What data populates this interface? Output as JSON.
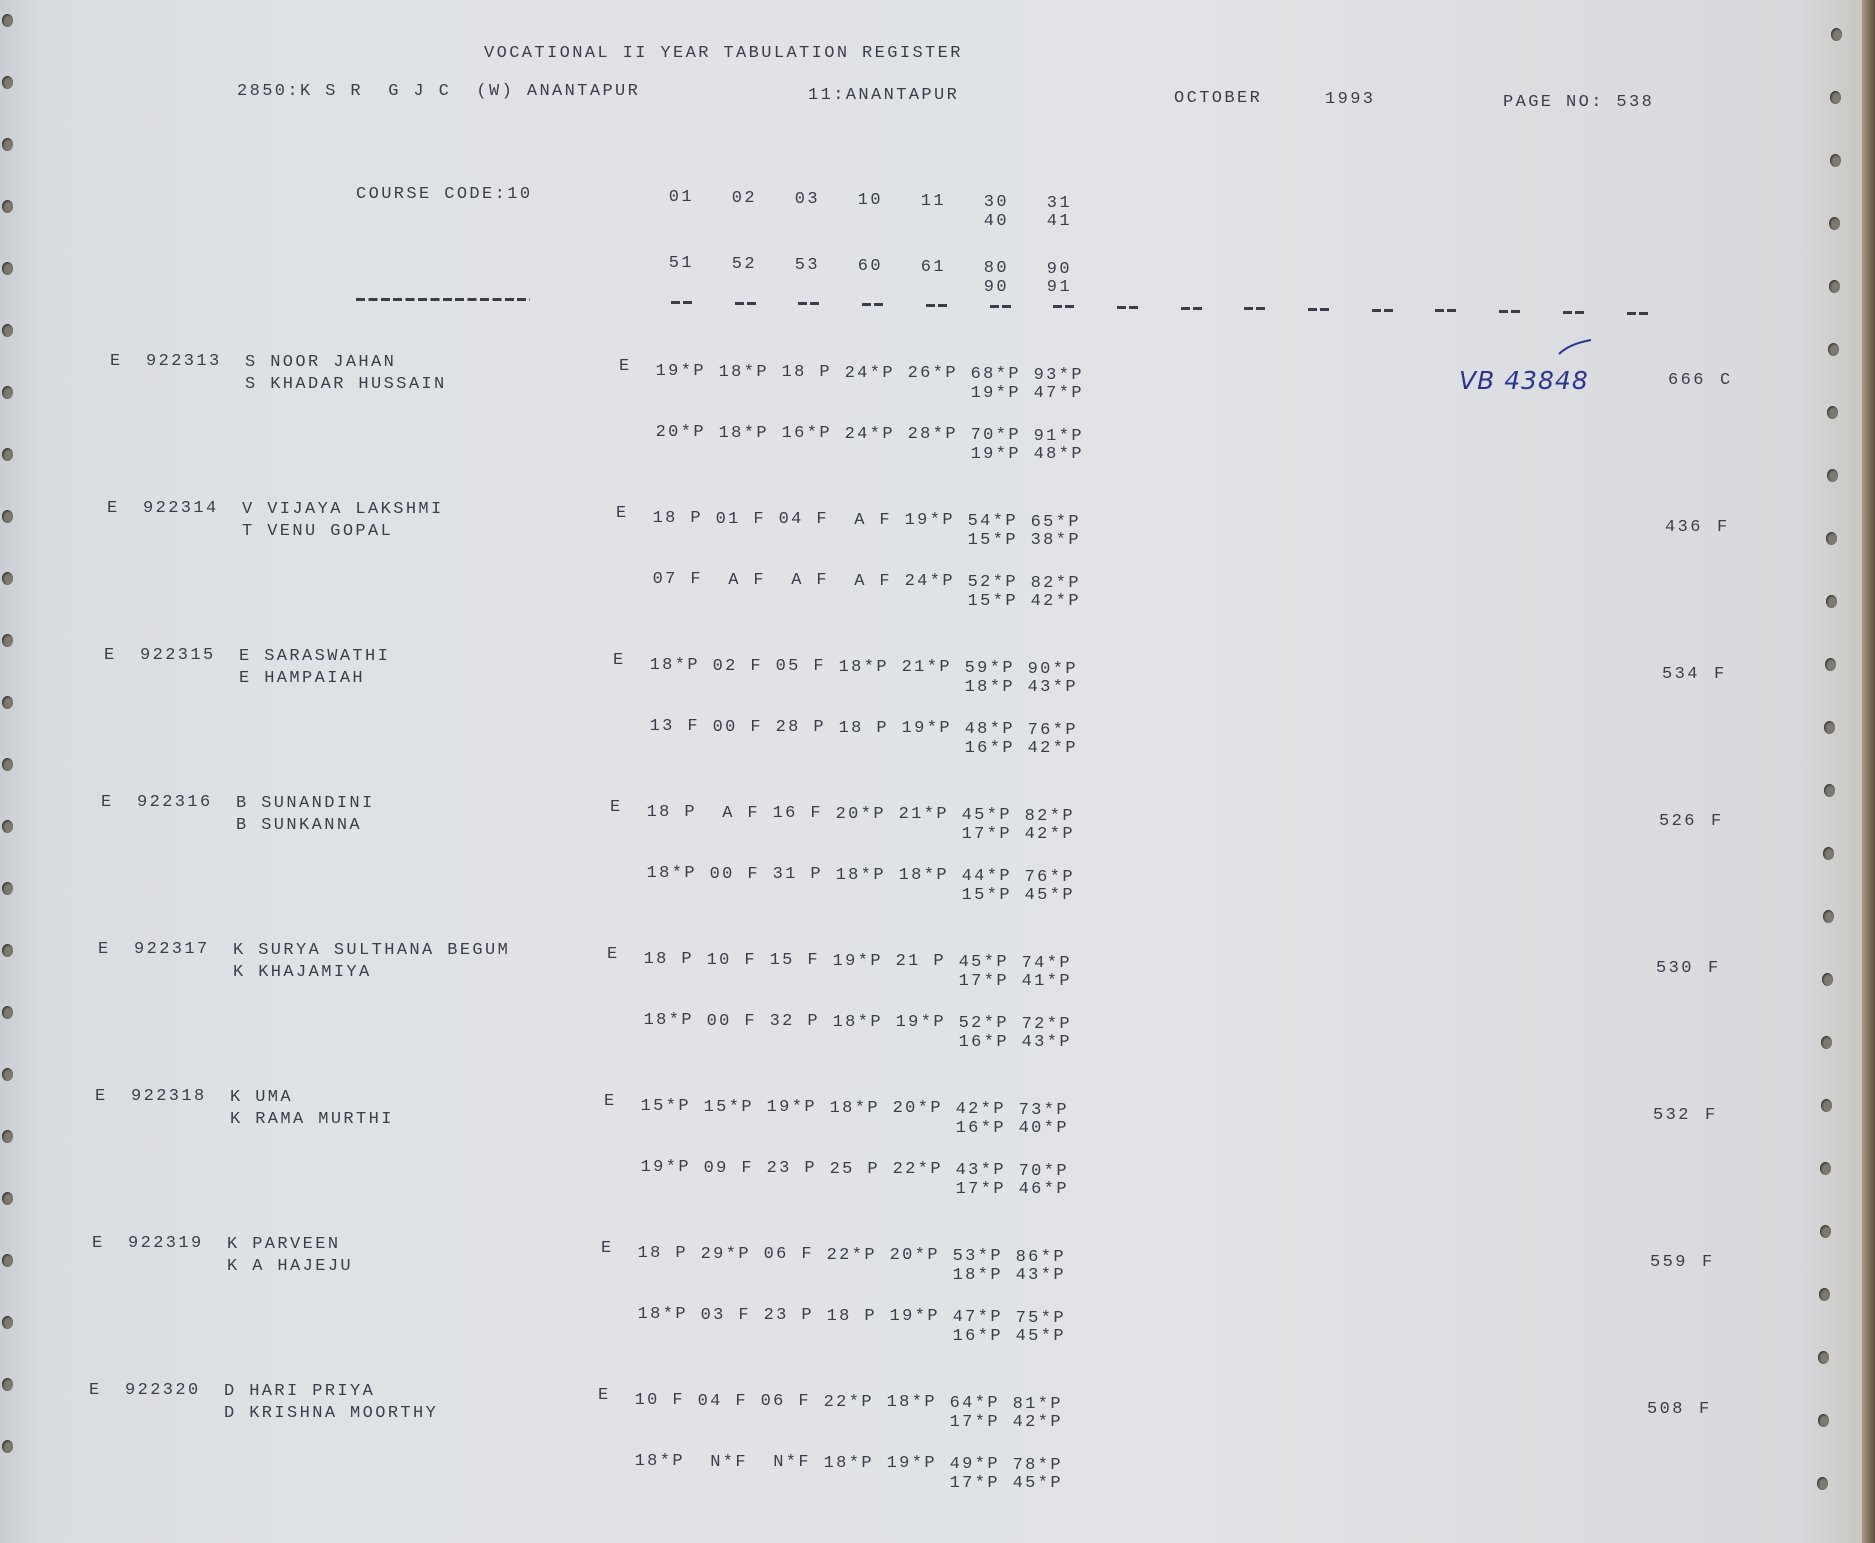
{
  "header": {
    "title": "VOCATIONAL II YEAR TABULATION REGISTER",
    "college": "2850:K S R  G J C  (W) ANANTAPUR",
    "district": "11:ANANTAPUR",
    "month": "OCTOBER",
    "year": "1993",
    "page_no": "PAGE NO: 538"
  },
  "course": {
    "label": "COURSE CODE:10",
    "codes_row1": [
      "01",
      "02",
      "03",
      "10",
      "11",
      "30",
      "31"
    ],
    "codes_row1_sub": [
      "40",
      "41"
    ],
    "codes_row2": [
      "51",
      "52",
      "53",
      "60",
      "61",
      "80",
      "90"
    ],
    "codes_row2_sub": [
      "90",
      "91"
    ]
  },
  "handwritten_note": "VB 43848",
  "colors": {
    "ink": "#3b3e4a",
    "pen": "#2b3590",
    "paper": "#e0e2e5"
  },
  "records": [
    {
      "tag": "E",
      "roll": "922313",
      "name": "S NOOR JAHAN",
      "parent": "S KHADAR HUSSAIN",
      "exam": "E",
      "line1": [
        "19*P",
        "18*P",
        "18 P",
        "24*P",
        "26*P",
        "68*P",
        "93*P"
      ],
      "line1_sub": [
        "19*P",
        "47*P"
      ],
      "line2": [
        "20*P",
        "18*P",
        "16*P",
        "24*P",
        "28*P",
        "70*P",
        "91*P"
      ],
      "line2_sub": [
        "19*P",
        "48*P"
      ],
      "total": "666",
      "result": "C"
    },
    {
      "tag": "E",
      "roll": "922314",
      "name": "V VIJAYA LAKSHMI",
      "parent": "T VENU GOPAL",
      "exam": "E",
      "line1": [
        "18 P",
        "01 F",
        "04 F",
        "A F",
        "19*P",
        "54*P",
        "65*P"
      ],
      "line1_sub": [
        "15*P",
        "38*P"
      ],
      "line2": [
        "07 F",
        "A F",
        "A F",
        "A F",
        "24*P",
        "52*P",
        "82*P"
      ],
      "line2_sub": [
        "15*P",
        "42*P"
      ],
      "total": "436",
      "result": "F"
    },
    {
      "tag": "E",
      "roll": "922315",
      "name": "E SARASWATHI",
      "parent": "E HAMPAIAH",
      "exam": "E",
      "line1": [
        "18*P",
        "02 F",
        "05 F",
        "18*P",
        "21*P",
        "59*P",
        "90*P"
      ],
      "line1_sub": [
        "18*P",
        "43*P"
      ],
      "line2": [
        "13 F",
        "00 F",
        "28 P",
        "18 P",
        "19*P",
        "48*P",
        "76*P"
      ],
      "line2_sub": [
        "16*P",
        "42*P"
      ],
      "total": "534",
      "result": "F"
    },
    {
      "tag": "E",
      "roll": "922316",
      "name": "B SUNANDINI",
      "parent": "B SUNKANNA",
      "exam": "E",
      "line1": [
        "18 P",
        "A F",
        "16 F",
        "20*P",
        "21*P",
        "45*P",
        "82*P"
      ],
      "line1_sub": [
        "17*P",
        "42*P"
      ],
      "line2": [
        "18*P",
        "00 F",
        "31 P",
        "18*P",
        "18*P",
        "44*P",
        "76*P"
      ],
      "line2_sub": [
        "15*P",
        "45*P"
      ],
      "total": "526",
      "result": "F"
    },
    {
      "tag": "E",
      "roll": "922317",
      "name": "K SURYA SULTHANA BEGUM",
      "parent": "K KHAJAMIYA",
      "exam": "E",
      "line1": [
        "18 P",
        "10 F",
        "15 F",
        "19*P",
        "21 P",
        "45*P",
        "74*P"
      ],
      "line1_sub": [
        "17*P",
        "41*P"
      ],
      "line2": [
        "18*P",
        "00 F",
        "32 P",
        "18*P",
        "19*P",
        "52*P",
        "72*P"
      ],
      "line2_sub": [
        "16*P",
        "43*P"
      ],
      "total": "530",
      "result": "F"
    },
    {
      "tag": "E",
      "roll": "922318",
      "name": "K UMA",
      "parent": "K RAMA MURTHI",
      "exam": "E",
      "line1": [
        "15*P",
        "15*P",
        "19*P",
        "18*P",
        "20*P",
        "42*P",
        "73*P"
      ],
      "line1_sub": [
        "16*P",
        "40*P"
      ],
      "line2": [
        "19*P",
        "09 F",
        "23 P",
        "25 P",
        "22*P",
        "43*P",
        "70*P"
      ],
      "line2_sub": [
        "17*P",
        "46*P"
      ],
      "total": "532",
      "result": "F"
    },
    {
      "tag": "E",
      "roll": "922319",
      "name": "K PARVEEN",
      "parent": "K A HAJEJU",
      "exam": "E",
      "line1": [
        "18 P",
        "29*P",
        "06 F",
        "22*P",
        "20*P",
        "53*P",
        "86*P"
      ],
      "line1_sub": [
        "18*P",
        "43*P"
      ],
      "line2": [
        "18*P",
        "03 F",
        "23 P",
        "18 P",
        "19*P",
        "47*P",
        "75*P"
      ],
      "line2_sub": [
        "16*P",
        "45*P"
      ],
      "total": "559",
      "result": "F"
    },
    {
      "tag": "E",
      "roll": "922320",
      "name": "D HARI PRIYA",
      "parent": "D KRISHNA MOORTHY",
      "exam": "E",
      "line1": [
        "10 F",
        "04 F",
        "06 F",
        "22*P",
        "18*P",
        "64*P",
        "81*P"
      ],
      "line1_sub": [
        "17*P",
        "42*P"
      ],
      "line2": [
        "18*P",
        "N*F",
        "N*F",
        "18*P",
        "19*P",
        "49*P",
        "78*P"
      ],
      "line2_sub": [
        "17*P",
        "45*P"
      ],
      "total": "508",
      "result": "F"
    }
  ]
}
